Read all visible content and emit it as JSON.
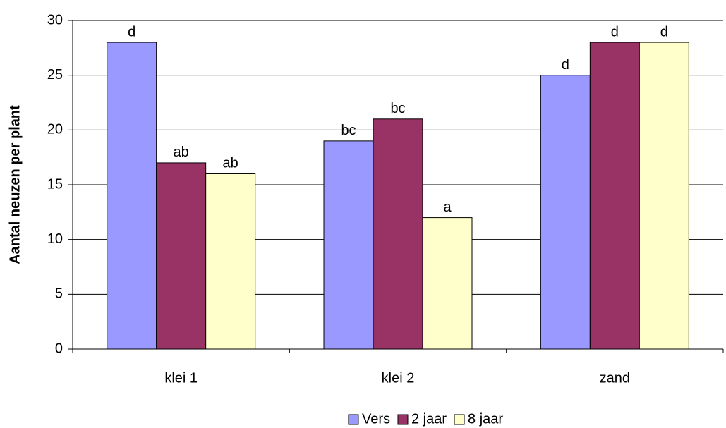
{
  "chart_data": {
    "type": "bar",
    "y_label": "Aantal neuzen per plant",
    "categories": [
      "klei 1",
      "klei 2",
      "zand"
    ],
    "series": [
      {
        "name": "Vers",
        "color": "#9999ff",
        "values": [
          28,
          19,
          25
        ],
        "annotations": [
          "d",
          "bc",
          "d"
        ]
      },
      {
        "name": "2 jaar",
        "color": "#993366",
        "values": [
          17,
          21,
          28
        ],
        "annotations": [
          "ab",
          "bc",
          "d"
        ]
      },
      {
        "name": "8 jaar",
        "color": "#ffffcc",
        "values": [
          16,
          12,
          28
        ],
        "annotations": [
          "ab",
          "a",
          "d"
        ]
      }
    ],
    "ylim": [
      0,
      30
    ],
    "yticks": [
      0,
      5,
      10,
      15,
      20,
      25,
      30
    ],
    "grid": true,
    "legend": "bottom"
  }
}
